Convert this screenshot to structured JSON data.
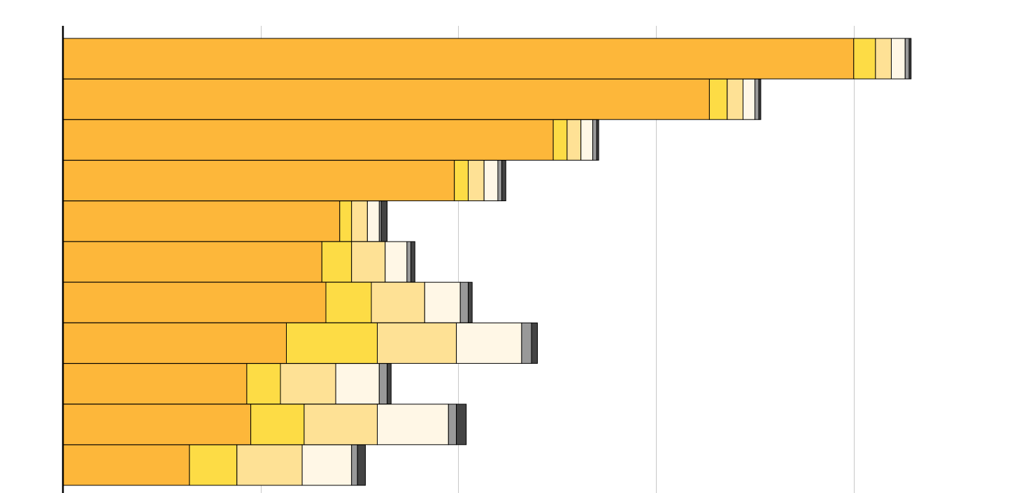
{
  "chart_data": {
    "type": "bar",
    "orientation": "horizontal",
    "stacked": true,
    "title": "",
    "xlabel": "",
    "ylabel": "",
    "xlim": [
      0,
      4.3
    ],
    "gridlines_x": [
      1,
      2,
      3,
      4
    ],
    "grid": true,
    "legend": "none",
    "colors": [
      "#FDB73A",
      "#FDDC45",
      "#FEE195",
      "#FFF7E6",
      "#999999",
      "#444444"
    ],
    "stack_order": [
      "segment-1",
      "segment-2",
      "segment-3",
      "segment-4",
      "segment-5",
      "segment-6"
    ],
    "rows": [
      [
        4.0,
        0.11,
        0.08,
        0.07,
        0.02,
        0.01
      ],
      [
        3.27,
        0.09,
        0.08,
        0.06,
        0.02,
        0.01
      ],
      [
        2.48,
        0.07,
        0.07,
        0.06,
        0.02,
        0.01
      ],
      [
        1.98,
        0.07,
        0.08,
        0.07,
        0.02,
        0.02
      ],
      [
        1.4,
        0.06,
        0.08,
        0.06,
        0.01,
        0.03
      ],
      [
        1.31,
        0.15,
        0.17,
        0.11,
        0.02,
        0.02
      ],
      [
        1.33,
        0.23,
        0.27,
        0.18,
        0.04,
        0.02
      ],
      [
        1.13,
        0.46,
        0.4,
        0.33,
        0.05,
        0.03
      ],
      [
        0.93,
        0.17,
        0.28,
        0.22,
        0.04,
        0.02
      ],
      [
        0.95,
        0.27,
        0.37,
        0.36,
        0.04,
        0.05
      ],
      [
        0.64,
        0.24,
        0.33,
        0.25,
        0.03,
        0.04
      ]
    ]
  }
}
